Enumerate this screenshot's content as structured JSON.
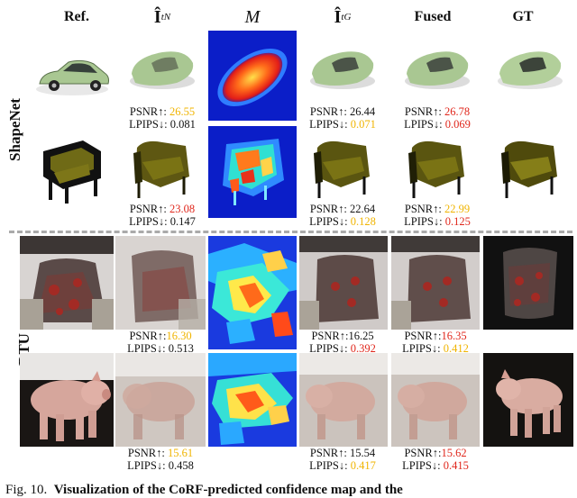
{
  "headers": {
    "ref": "Ref.",
    "novel": "Î",
    "novel_sub": "t",
    "novel_sup": "N",
    "mask": "M",
    "geo": "Î",
    "geo_sub": "t",
    "geo_sup": "G",
    "fused": "Fused",
    "gt": "GT"
  },
  "row_labels": {
    "shapenet": "ShapeNet",
    "dtu": "DTU"
  },
  "metrics": {
    "car": {
      "n": [
        "PSNR↑: ",
        "26.55",
        "LPIPS↓: ",
        "0.081"
      ],
      "g": [
        "PSNR↑: ",
        "26.44",
        "LPIPS↓: ",
        "0.071"
      ],
      "f": [
        "PSNR↑: ",
        "26.78",
        "LPIPS↓: ",
        "0.069"
      ]
    },
    "chair": {
      "n": [
        "PSNR↑: ",
        "23.08",
        "LPIPS↓: ",
        "0.147"
      ],
      "g": [
        "PSNR↑: ",
        "22.64",
        "LPIPS↓: ",
        "0.128"
      ],
      "f": [
        "PSNR↑: ",
        "22.99",
        "LPIPS↓: ",
        "0.125"
      ]
    },
    "cup": {
      "n": [
        "PSNR↑:",
        "16.30",
        "LPIPS↓: ",
        "0.513"
      ],
      "g": [
        "PSNR↑:",
        "16.25",
        "LPIPS↓: ",
        "0.392"
      ],
      "f": [
        "PSNR↑:",
        "16.35",
        "LPIPS↓: ",
        "0.412"
      ]
    },
    "pig": {
      "n": [
        "PSNR↑: ",
        "15.61",
        "LPIPS↓: ",
        "0.458"
      ],
      "g": [
        "PSNR↑: ",
        "15.54",
        "LPIPS↓: ",
        "0.417"
      ],
      "f": [
        "PSNR↑:",
        "15.62",
        "LPIPS↓: ",
        "0.415"
      ]
    }
  },
  "caption": {
    "prefix": "Fig. 10.",
    "text": "Visualization of the CoRF-predicted confidence map and the"
  },
  "colors": {
    "best": "#e0261b",
    "second": "#f0b400",
    "car_body": "#a9c792",
    "chair": "#6f6a16"
  }
}
